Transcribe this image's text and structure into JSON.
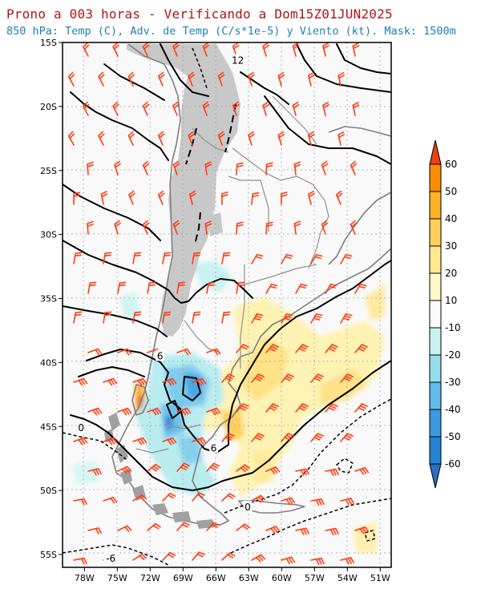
{
  "title": "Prono a 003 horas - Verificando a Dom15Z01JUN2025",
  "subtitle": "850 hPa: Temp (C), Adv. de Temp (C/s*1e-5) y Viento (kt). Mask: 1500m",
  "map": {
    "lon_range": [
      -80,
      -50
    ],
    "lat_range": [
      -56,
      -15
    ],
    "lon_ticks": [
      {
        "value": -78,
        "label": "78W"
      },
      {
        "value": -75,
        "label": "75W"
      },
      {
        "value": -72,
        "label": "72W"
      },
      {
        "value": -69,
        "label": "69W"
      },
      {
        "value": -66,
        "label": "66W"
      },
      {
        "value": -63,
        "label": "63W"
      },
      {
        "value": -60,
        "label": "60W"
      },
      {
        "value": -57,
        "label": "57W"
      },
      {
        "value": -54,
        "label": "54W"
      },
      {
        "value": -51,
        "label": "51W"
      }
    ],
    "lat_ticks": [
      {
        "value": -15,
        "label": "15S"
      },
      {
        "value": -20,
        "label": "20S"
      },
      {
        "value": -25,
        "label": "25S"
      },
      {
        "value": -30,
        "label": "30S"
      },
      {
        "value": -35,
        "label": "35S"
      },
      {
        "value": -40,
        "label": "40S"
      },
      {
        "value": -45,
        "label": "45S"
      },
      {
        "value": -50,
        "label": "50S"
      },
      {
        "value": -55,
        "label": "55S"
      }
    ],
    "contour_labels": [
      {
        "text": "12",
        "lon": -64.0,
        "lat": -16.4
      },
      {
        "text": "6",
        "lon": -71.1,
        "lat": -39.5
      },
      {
        "text": "6",
        "lon": -66.2,
        "lat": -46.7
      },
      {
        "text": "0",
        "lon": -78.3,
        "lat": -45.1
      },
      {
        "text": "0",
        "lon": -63.1,
        "lat": -51.3
      },
      {
        "text": "-6",
        "lon": -75.6,
        "lat": -55.3
      }
    ],
    "colors": {
      "mask": "#c8c8c8",
      "wind_barb": "#ff3c14",
      "contour": "#000000",
      "coast": "#7f7f7f",
      "grid": "#a0a0a0"
    }
  },
  "colorbar": {
    "labels": [
      "60",
      "50",
      "40",
      "30",
      "20",
      "10",
      "-10",
      "-20",
      "-30",
      "-40",
      "-50",
      "-60"
    ],
    "colors": [
      "#e8420a",
      "#ff8c00",
      "#ffb128",
      "#ffd158",
      "#ffe98f",
      "#fff8c8",
      "#fafafa",
      "#c8f2f0",
      "#96dced",
      "#64b9ea",
      "#3c99df",
      "#2583d3",
      "#2d6fc0"
    ]
  }
}
